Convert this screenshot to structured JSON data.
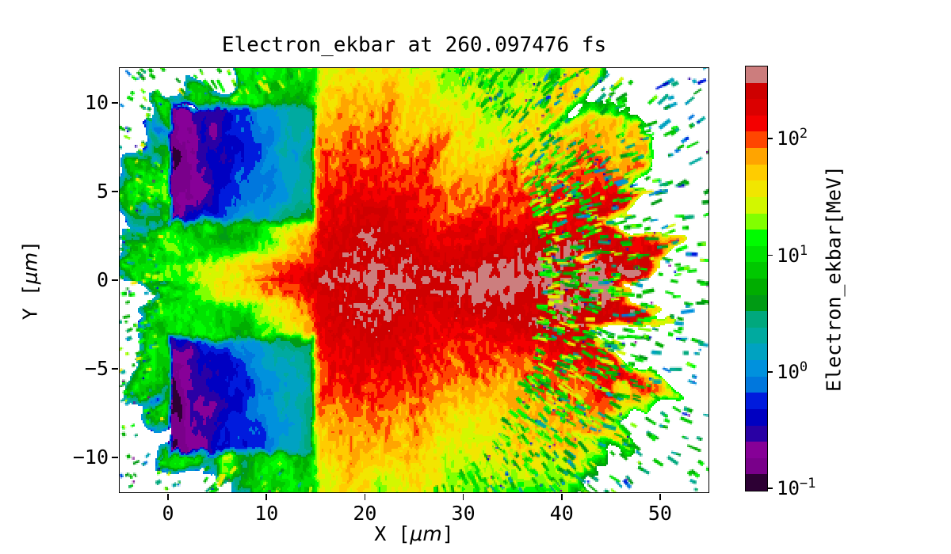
{
  "figure": {
    "background": "#ffffff",
    "text_color": "#000000"
  },
  "axes": {
    "xlabel": {
      "pre": "X [",
      "unit": "μm",
      "post": "]"
    },
    "ylabel": {
      "pre": "Y [",
      "unit": "μm",
      "post": "]"
    }
  },
  "chart_data": {
    "type": "heatmap",
    "title": "Electron_ekbar at 260.097476 fs",
    "time_fs": "260.097476",
    "xlabel": "X [μm]",
    "ylabel": "Y [μm]",
    "x_range": [
      -5,
      55
    ],
    "y_range": [
      -12,
      12
    ],
    "x_ticks": [
      0,
      10,
      20,
      30,
      40,
      50
    ],
    "y_ticks": [
      10,
      5,
      0,
      -5,
      -10
    ],
    "grid": false,
    "legend_position": "colorbar-right",
    "color_scale": {
      "label": "Electron_ekbar[MeV]",
      "scale": "log",
      "colormap": "nipy_spectral",
      "discrete_levels": 26,
      "log10_range": [
        -1.02,
        2.62
      ],
      "ticks": [
        {
          "label_base": "10",
          "label_exp": "2",
          "value_mev": 100
        },
        {
          "label_base": "10",
          "label_exp": "1",
          "value_mev": 10
        },
        {
          "label_base": "10",
          "label_exp": "0",
          "value_mev": 1
        },
        {
          "label_base": "10",
          "label_exp": "−1",
          "value_mev": 0.1
        }
      ]
    },
    "features": {
      "hot_core": {
        "center_um": [
          21,
          0
        ],
        "radius_um": 8,
        "ekbar_mev": [
          80,
          400
        ],
        "description": "intense red/dark-red plasma core with grey peak speckles near (22,0)"
      },
      "plasma_jet": {
        "x_um": [
          0,
          16
        ],
        "y_um": [
          -2.5,
          2.5
        ],
        "ekbar_mev": [
          10,
          200
        ],
        "description": "hot channel between the two target blocks, energy rising toward +x"
      },
      "target_blocks": [
        {
          "x_um": [
            0,
            15
          ],
          "y_um": [
            3,
            10
          ],
          "ekbar_mev": [
            0.15,
            2.5
          ],
          "description": "cold target slab: purple (lowest) at left grading to blue/cyan at right"
        },
        {
          "x_um": [
            0,
            15
          ],
          "y_um": [
            -10,
            -3
          ],
          "ekbar_mev": [
            0.15,
            2.5
          ],
          "description": "cold target slab: purple (lowest) at left grading to blue/cyan at right"
        }
      ],
      "halo": {
        "orange_mev": [
          40,
          90
        ],
        "yellow_mev": [
          15,
          40
        ],
        "green_mev": [
          3,
          15
        ],
        "description": "concentric orange→yellow→green halo around the core, radially streaked"
      },
      "ejecta": {
        "x_um": [
          30,
          55
        ],
        "ekbar_mev": [
          0.1,
          20
        ],
        "description": "sparse radially-oriented particle streaks (green/teal/blue/purple), density decreasing outward"
      }
    }
  }
}
